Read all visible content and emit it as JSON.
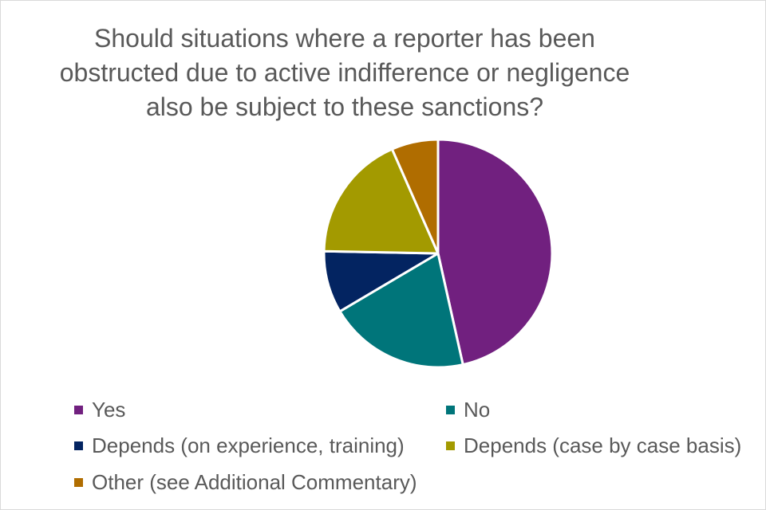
{
  "chart_data": {
    "type": "pie",
    "title_lines": [
      "Should situations where a reporter has been",
      "obstructed due to active indifference or negligence",
      "also be subject to these sanctions?"
    ],
    "legend_position": "bottom",
    "slices": [
      {
        "label": "Yes",
        "value": 46.5,
        "color": "#71207f"
      },
      {
        "label": "No",
        "value": 20.0,
        "color": "#00757a"
      },
      {
        "label": "Depends (on experience, training)",
        "value": 8.8,
        "color": "#032461"
      },
      {
        "label": "Depends (case by case basis)",
        "value": 18.1,
        "color": "#a39a00"
      },
      {
        "label": "Other (see Additional Commentary)",
        "value": 6.6,
        "color": "#b06d00"
      }
    ]
  }
}
